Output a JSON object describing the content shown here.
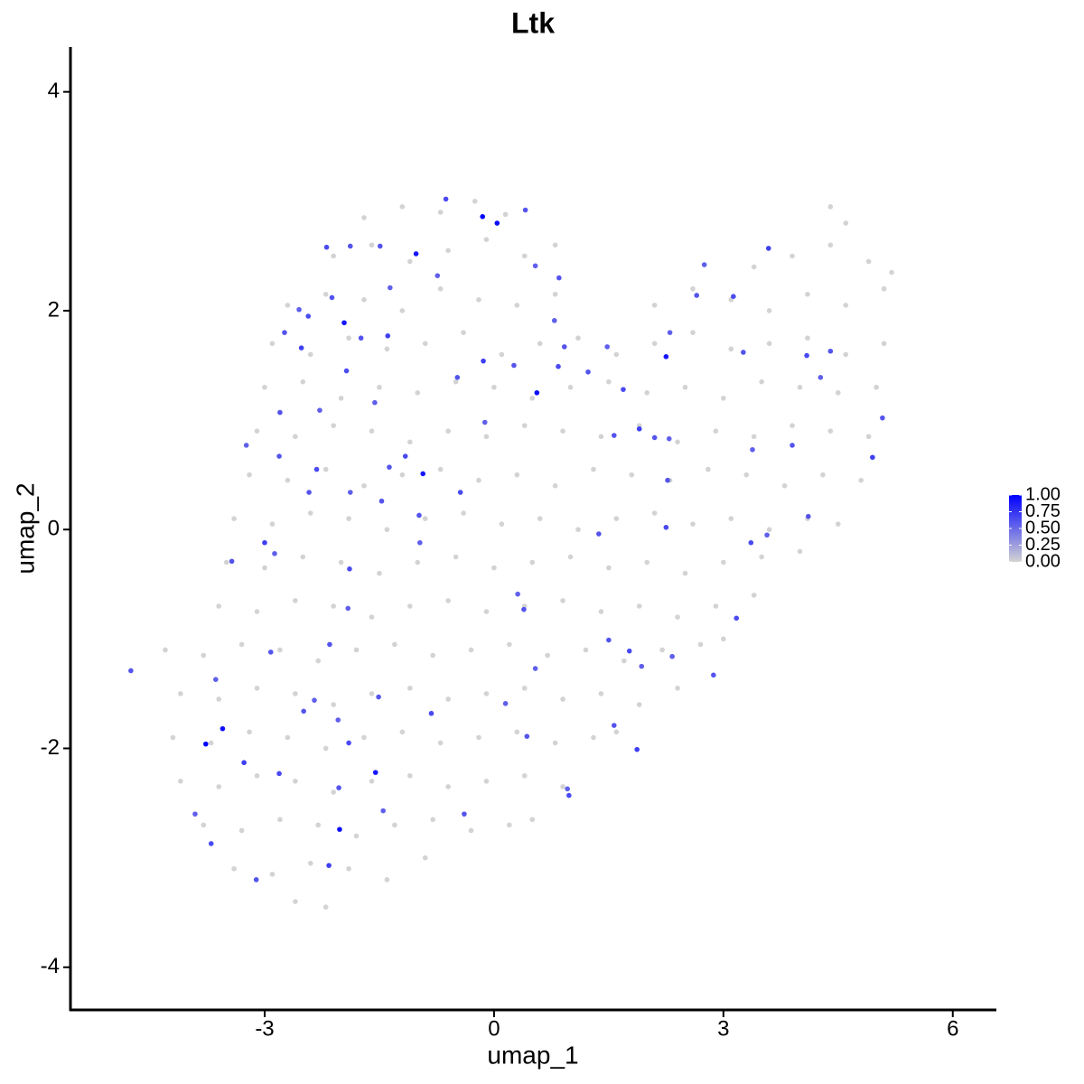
{
  "chart_data": {
    "type": "scatter",
    "title": "Ltk",
    "x_label": "umap_1",
    "y_label": "umap_2",
    "xlim": [
      -5.54,
      6.57
    ],
    "ylim": [
      -4.39,
      4.41
    ],
    "xticks": [
      -3,
      0,
      3,
      6
    ],
    "yticks": [
      -4,
      -2,
      0,
      2,
      4
    ],
    "grid": false,
    "colors": [
      "#d3d3d3",
      "#0000ff"
    ],
    "color_lim": [
      0,
      1
    ],
    "color_ticks": [
      {
        "value": 0,
        "label": "0.00"
      },
      {
        "value": 0.25,
        "label": "0.25"
      },
      {
        "value": 0.5,
        "label": "0.50"
      },
      {
        "value": 0.75,
        "label": "0.75"
      },
      {
        "value": 1,
        "label": "1.00"
      }
    ],
    "x": [
      -1.7,
      -1.2,
      -0.7,
      -0.25,
      0.15,
      4.4,
      4.6,
      -2.1,
      -1.6,
      -1.1,
      -0.6,
      -0.1,
      0.4,
      0.8,
      3.4,
      3.9,
      4.4,
      4.9,
      5.2,
      -2.7,
      -2.2,
      -1.7,
      -1.2,
      -0.7,
      -0.2,
      0.3,
      0.8,
      2.1,
      2.6,
      3.1,
      3.6,
      4.1,
      4.6,
      5.1,
      -2.9,
      -2.4,
      -1.9,
      -1.4,
      -0.9,
      -0.4,
      0.1,
      0.6,
      1.1,
      1.6,
      2.1,
      2.6,
      3.1,
      3.6,
      4.1,
      4.6,
      5.1,
      -3.0,
      -2.5,
      -2.0,
      -1.5,
      -1.0,
      -0.5,
      0.0,
      0.5,
      1.0,
      1.5,
      2.0,
      2.5,
      3.0,
      3.5,
      4.0,
      4.5,
      5.0,
      -3.1,
      -2.6,
      -2.1,
      -1.6,
      -1.1,
      -0.6,
      -0.1,
      0.4,
      0.9,
      1.4,
      1.9,
      2.4,
      2.9,
      3.4,
      3.9,
      4.4,
      4.9,
      -3.2,
      -2.7,
      -2.2,
      -1.7,
      -1.2,
      -0.7,
      -0.2,
      0.3,
      0.8,
      1.3,
      1.8,
      2.3,
      2.8,
      3.3,
      3.8,
      4.3,
      4.8,
      -3.4,
      -2.9,
      -2.4,
      -1.9,
      -1.4,
      -0.9,
      -0.4,
      0.1,
      0.6,
      1.1,
      1.6,
      2.1,
      2.6,
      3.1,
      3.6,
      4.1,
      4.5,
      -3.5,
      -3.0,
      -2.5,
      -2.0,
      -1.5,
      -1.0,
      -0.5,
      0.0,
      0.5,
      1.0,
      1.5,
      2.0,
      2.5,
      3.0,
      3.5,
      4.0,
      -3.6,
      -3.1,
      -2.6,
      -2.1,
      -1.6,
      -1.1,
      -0.6,
      -0.1,
      0.4,
      0.9,
      1.4,
      1.9,
      2.4,
      2.9,
      3.4,
      -4.3,
      -3.8,
      -3.3,
      -2.8,
      -2.3,
      -1.8,
      -1.3,
      -0.8,
      -0.3,
      0.2,
      0.7,
      1.2,
      1.7,
      2.2,
      2.7,
      3.0,
      -4.1,
      -3.6,
      -3.1,
      -2.6,
      -2.1,
      -1.6,
      -1.1,
      -0.6,
      -0.1,
      0.4,
      0.9,
      1.4,
      1.9,
      2.4,
      -4.2,
      -3.7,
      -3.2,
      -2.7,
      -2.2,
      -1.7,
      -1.2,
      -0.7,
      -0.2,
      0.3,
      0.8,
      1.3,
      1.6,
      -4.1,
      -3.6,
      -3.1,
      -2.6,
      -2.1,
      -1.6,
      -1.1,
      -0.6,
      -0.1,
      0.4,
      0.9,
      -3.8,
      -3.3,
      -2.8,
      -2.3,
      -1.8,
      -1.3,
      -0.8,
      -0.3,
      0.2,
      0.5,
      -3.4,
      -2.9,
      -2.4,
      -1.9,
      -1.4,
      -0.9,
      -2.6,
      -2.2,
      -4.75,
      -3.91,
      -3.7,
      -3.11,
      -3.27,
      -3.64,
      -2.92,
      -2.81,
      -2.49,
      -2.35,
      -2.15,
      -2.04,
      -1.9,
      -2.03,
      -2.16,
      -1.45,
      -1.51,
      -0.82,
      -0.39,
      0.15,
      0.43,
      0.54,
      0.98,
      1.57,
      1.87,
      1.93,
      2.87,
      3.17,
      1.5,
      0.31,
      0.39,
      -1.91,
      -1.89,
      -3.43,
      -3.0,
      -2.87,
      -2.42,
      -2.32,
      -2.81,
      -3.24,
      -2.8,
      -2.28,
      -1.93,
      -1.74,
      -1.39,
      -1.56,
      -1.37,
      -1.16,
      -1.47,
      -1.88,
      -0.98,
      -0.97,
      -0.44,
      -0.48,
      -0.14,
      -0.12,
      0.26,
      0.84,
      0.92,
      0.79,
      1.23,
      1.48,
      1.69,
      1.57,
      1.9,
      2.29,
      2.27,
      2.25,
      1.37,
      2.3,
      2.65,
      2.75,
      3.13,
      3.26,
      3.59,
      3.38,
      3.9,
      4.09,
      4.4,
      4.27,
      4.11,
      3.57,
      3.36,
      5.08,
      4.95,
      -0.74,
      -1.88,
      -2.19,
      -1.49,
      -1.36,
      -2.12,
      -2.55,
      -2.43,
      -2.74,
      -2.52,
      0.54,
      0.85,
      -0.63,
      0.41,
      2.33,
      2.1,
      1.77,
      0.96,
      -0.15,
      0.04,
      -1.02,
      -1.96,
      0.56,
      2.25,
      -0.93,
      -3.55,
      -3.77,
      -1.55,
      -2.02
    ],
    "y": [
      2.85,
      2.95,
      2.9,
      3.0,
      2.88,
      2.95,
      2.8,
      2.5,
      2.6,
      2.45,
      2.55,
      2.65,
      2.5,
      2.6,
      2.4,
      2.5,
      2.6,
      2.45,
      2.35,
      2.05,
      2.15,
      2.1,
      2.0,
      2.2,
      2.1,
      2.05,
      2.15,
      2.05,
      2.2,
      2.1,
      2.0,
      2.15,
      2.05,
      2.2,
      1.7,
      1.6,
      1.75,
      1.65,
      1.7,
      1.8,
      1.6,
      1.7,
      1.75,
      1.6,
      1.7,
      1.8,
      1.65,
      1.7,
      1.75,
      1.6,
      1.7,
      1.3,
      1.35,
      1.2,
      1.3,
      1.25,
      1.35,
      1.3,
      1.2,
      1.3,
      1.35,
      1.25,
      1.3,
      1.2,
      1.35,
      1.3,
      1.25,
      1.3,
      0.9,
      0.85,
      0.95,
      0.9,
      0.8,
      0.9,
      0.85,
      0.95,
      0.9,
      0.85,
      0.95,
      0.8,
      0.9,
      0.85,
      0.95,
      0.9,
      0.85,
      0.5,
      0.45,
      0.55,
      0.4,
      0.5,
      0.55,
      0.45,
      0.5,
      0.4,
      0.55,
      0.5,
      0.45,
      0.55,
      0.5,
      0.4,
      0.5,
      0.45,
      0.1,
      0.05,
      0.15,
      0.1,
      0.0,
      0.1,
      0.15,
      0.05,
      0.1,
      0.0,
      0.1,
      0.15,
      0.05,
      0.1,
      0.0,
      0.1,
      0.05,
      -0.3,
      -0.35,
      -0.25,
      -0.3,
      -0.4,
      -0.3,
      -0.25,
      -0.35,
      -0.3,
      -0.25,
      -0.35,
      -0.3,
      -0.4,
      -0.3,
      -0.25,
      -0.2,
      -0.7,
      -0.75,
      -0.65,
      -0.7,
      -0.8,
      -0.7,
      -0.65,
      -0.75,
      -0.7,
      -0.65,
      -0.75,
      -0.7,
      -0.8,
      -0.7,
      -0.6,
      -1.1,
      -1.15,
      -1.05,
      -1.1,
      -1.2,
      -1.1,
      -1.05,
      -1.15,
      -1.1,
      -1.05,
      -1.15,
      -1.1,
      -1.2,
      -1.1,
      -1.05,
      -1.0,
      -1.5,
      -1.55,
      -1.45,
      -1.5,
      -1.6,
      -1.5,
      -1.45,
      -1.55,
      -1.5,
      -1.45,
      -1.55,
      -1.5,
      -1.6,
      -1.45,
      -1.9,
      -1.95,
      -1.85,
      -1.9,
      -2.0,
      -1.9,
      -1.85,
      -1.95,
      -1.9,
      -1.85,
      -1.95,
      -1.9,
      -1.85,
      -2.3,
      -2.35,
      -2.25,
      -2.3,
      -2.4,
      -2.3,
      -2.25,
      -2.35,
      -2.3,
      -2.25,
      -2.35,
      -2.7,
      -2.75,
      -2.65,
      -2.7,
      -2.8,
      -2.7,
      -2.65,
      -2.75,
      -2.7,
      -2.65,
      -3.1,
      -3.15,
      -3.05,
      -3.1,
      -3.2,
      -3.0,
      -3.4,
      -3.45,
      -1.29,
      -2.6,
      -2.87,
      -3.2,
      -2.13,
      -1.37,
      -1.12,
      -2.23,
      -1.66,
      -1.56,
      -1.05,
      -1.74,
      -1.95,
      -2.36,
      -3.07,
      -2.57,
      -1.53,
      -1.68,
      -2.6,
      -1.59,
      -1.89,
      -1.27,
      -2.43,
      -1.79,
      -2.01,
      -1.25,
      -1.33,
      -0.81,
      -1.01,
      -0.59,
      -0.73,
      -0.72,
      -0.36,
      -0.29,
      -0.12,
      -0.22,
      0.34,
      0.55,
      0.67,
      0.77,
      1.07,
      1.09,
      1.45,
      1.75,
      1.77,
      1.16,
      0.57,
      0.67,
      0.26,
      0.34,
      0.13,
      -0.12,
      0.34,
      1.39,
      1.54,
      0.98,
      1.5,
      1.49,
      1.67,
      1.91,
      1.44,
      1.67,
      1.28,
      0.86,
      0.92,
      0.83,
      0.45,
      0.02,
      -0.04,
      1.8,
      2.14,
      2.42,
      2.13,
      1.62,
      2.57,
      0.73,
      0.77,
      1.59,
      1.63,
      1.39,
      0.12,
      -0.05,
      -0.12,
      1.02,
      0.66,
      2.32,
      2.59,
      2.58,
      2.59,
      2.21,
      2.12,
      2.01,
      1.95,
      1.8,
      1.66,
      2.41,
      2.3,
      3.02,
      2.92,
      -1.16,
      0.84,
      -1.11,
      -2.37,
      2.86,
      2.8,
      2.52,
      1.89,
      1.25,
      1.58,
      0.51,
      -1.82,
      -1.96,
      -2.22,
      -2.74
    ],
    "values": [
      0,
      0,
      0,
      0,
      0,
      0,
      0,
      0,
      0,
      0,
      0,
      0,
      0,
      0,
      0,
      0,
      0,
      0,
      0,
      0,
      0,
      0,
      0,
      0,
      0,
      0,
      0,
      0,
      0,
      0,
      0,
      0,
      0,
      0,
      0,
      0,
      0,
      0,
      0,
      0,
      0,
      0,
      0,
      0,
      0,
      0,
      0,
      0,
      0,
      0,
      0,
      0,
      0,
      0,
      0,
      0,
      0,
      0,
      0,
      0,
      0,
      0,
      0,
      0,
      0,
      0,
      0,
      0,
      0,
      0,
      0,
      0,
      0,
      0,
      0,
      0,
      0,
      0,
      0,
      0,
      0,
      0,
      0,
      0,
      0,
      0,
      0,
      0,
      0,
      0,
      0,
      0,
      0,
      0,
      0,
      0,
      0,
      0,
      0,
      0,
      0,
      0,
      0,
      0,
      0,
      0,
      0,
      0,
      0,
      0,
      0,
      0,
      0,
      0,
      0,
      0,
      0,
      0,
      0,
      0,
      0,
      0,
      0,
      0,
      0,
      0,
      0,
      0,
      0,
      0,
      0,
      0,
      0,
      0,
      0,
      0,
      0,
      0,
      0,
      0,
      0,
      0,
      0,
      0,
      0,
      0,
      0,
      0,
      0,
      0,
      0,
      0,
      0,
      0,
      0,
      0,
      0,
      0,
      0,
      0,
      0,
      0,
      0,
      0,
      0,
      0,
      0,
      0,
      0,
      0,
      0,
      0,
      0,
      0,
      0,
      0,
      0,
      0,
      0,
      0,
      0,
      0,
      0,
      0,
      0,
      0,
      0,
      0,
      0,
      0,
      0,
      0,
      0,
      0,
      0,
      0,
      0,
      0,
      0,
      0,
      0,
      0,
      0,
      0,
      0,
      0,
      0,
      0,
      0,
      0,
      0,
      0,
      0,
      0,
      0,
      0,
      0,
      0,
      0,
      0,
      0,
      0,
      0.6,
      0.55,
      0.65,
      0.6,
      0.7,
      0.55,
      0.6,
      0.65,
      0.6,
      0.55,
      0.6,
      0.55,
      0.65,
      0.6,
      0.7,
      0.55,
      0.6,
      0.65,
      0.6,
      0.55,
      0.6,
      0.55,
      0.65,
      0.6,
      0.7,
      0.55,
      0.6,
      0.65,
      0.6,
      0.55,
      0.6,
      0.55,
      0.65,
      0.6,
      0.7,
      0.55,
      0.6,
      0.65,
      0.6,
      0.55,
      0.6,
      0.55,
      0.65,
      0.6,
      0.7,
      0.55,
      0.6,
      0.65,
      0.6,
      0.55,
      0.6,
      0.55,
      0.65,
      0.6,
      0.7,
      0.55,
      0.6,
      0.65,
      0.6,
      0.55,
      0.6,
      0.55,
      0.65,
      0.6,
      0.7,
      0.55,
      0.6,
      0.65,
      0.6,
      0.55,
      0.6,
      0.55,
      0.65,
      0.6,
      0.7,
      0.55,
      0.6,
      0.65,
      0.6,
      0.55,
      0.6,
      0.55,
      0.65,
      0.6,
      0.7,
      0.55,
      0.6,
      0.65,
      0.6,
      0.55,
      0.6,
      0.55,
      0.65,
      0.6,
      0.7,
      0.55,
      0.6,
      0.65,
      0.6,
      0.55,
      0.6,
      0.65,
      0.55,
      1,
      0.95,
      0.9,
      0.9,
      0.95,
      0.9,
      0.9,
      0.95,
      1,
      0.9,
      0.95
    ]
  }
}
